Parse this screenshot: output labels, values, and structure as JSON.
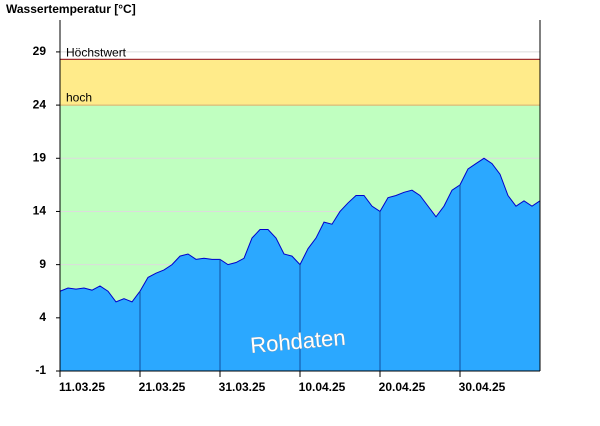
{
  "chart_data": {
    "type": "area",
    "title": "Wassertemperatur [°C]",
    "annotation": "Rohdaten",
    "x": [
      "11.03.25",
      "12.03.25",
      "13.03.25",
      "14.03.25",
      "15.03.25",
      "16.03.25",
      "17.03.25",
      "18.03.25",
      "19.03.25",
      "20.03.25",
      "21.03.25",
      "22.03.25",
      "23.03.25",
      "24.03.25",
      "25.03.25",
      "26.03.25",
      "27.03.25",
      "28.03.25",
      "29.03.25",
      "30.03.25",
      "31.03.25",
      "01.04.25",
      "02.04.25",
      "03.04.25",
      "04.04.25",
      "05.04.25",
      "06.04.25",
      "07.04.25",
      "08.04.25",
      "09.04.25",
      "10.04.25",
      "11.04.25",
      "12.04.25",
      "13.04.25",
      "14.04.25",
      "15.04.25",
      "16.04.25",
      "17.04.25",
      "18.04.25",
      "19.04.25",
      "20.04.25",
      "21.04.25",
      "22.04.25",
      "23.04.25",
      "24.04.25",
      "25.04.25",
      "26.04.25",
      "27.04.25",
      "28.04.25",
      "29.04.25",
      "30.04.25",
      "01.05.25",
      "02.05.25",
      "03.05.25",
      "04.05.25",
      "05.05.25",
      "06.05.25",
      "07.05.25",
      "08.05.25",
      "09.05.25",
      "10.05.25"
    ],
    "values": [
      6.5,
      6.8,
      6.7,
      6.8,
      6.6,
      7.0,
      6.5,
      5.5,
      5.8,
      5.5,
      6.5,
      7.8,
      8.2,
      8.5,
      9.0,
      9.8,
      10.0,
      9.5,
      9.6,
      9.5,
      9.5,
      9.0,
      9.2,
      9.6,
      11.5,
      12.3,
      12.3,
      11.5,
      10.0,
      9.8,
      9.0,
      10.5,
      11.5,
      13.0,
      12.8,
      14.0,
      14.8,
      15.5,
      15.5,
      14.5,
      14.0,
      15.3,
      15.5,
      15.8,
      16.0,
      15.5,
      14.5,
      13.5,
      14.5,
      16.0,
      16.5,
      18.0,
      18.5,
      19.0,
      18.5,
      17.5,
      15.5,
      14.5,
      15.0,
      14.5,
      15.0
    ],
    "fill_color": "#2ba8ff",
    "line_color": "#0000cc",
    "background": "#c0ffc0",
    "bands": [
      {
        "label": "hoch",
        "value": 24,
        "color": "#ffeb8a"
      },
      {
        "label": "Höchstwert",
        "value": 28.3,
        "color": "#a03030"
      }
    ],
    "ylim": [
      -1,
      32
    ],
    "yticks": [
      -1,
      4,
      9,
      14,
      19,
      24,
      29
    ],
    "xticks": [
      "11.03.25",
      "21.03.25",
      "31.03.25",
      "10.04.25",
      "20.04.25",
      "30.04.25"
    ],
    "grid": true
  }
}
